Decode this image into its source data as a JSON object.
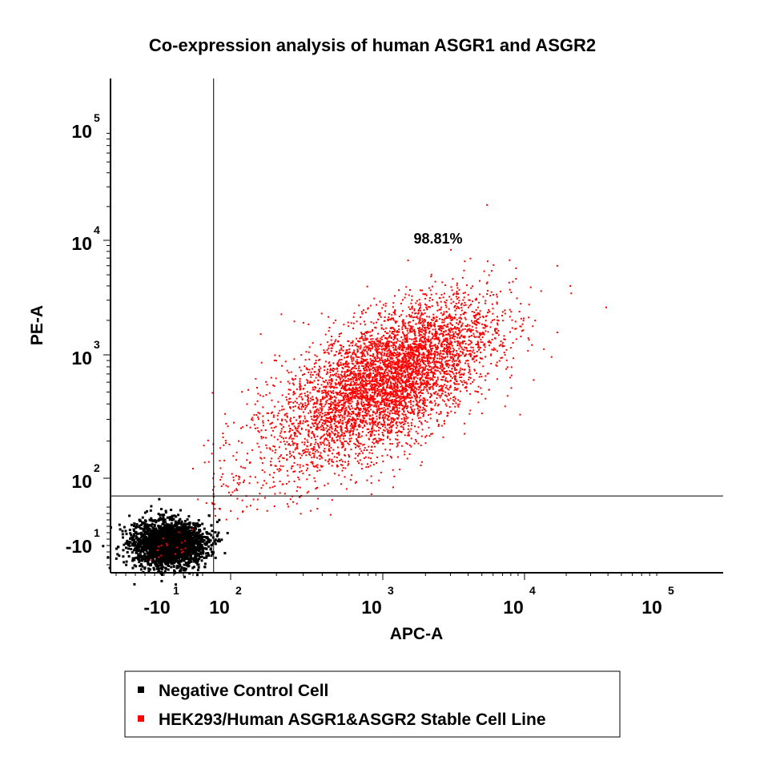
{
  "chart_data": {
    "type": "scatter",
    "title": "Co-expression analysis of human ASGR1 and ASGR2",
    "xlabel": "APC-A",
    "ylabel": "PE-A",
    "x_scale": "biexponential",
    "y_scale": "biexponential",
    "x_ticks": [
      {
        "base": "-10",
        "exp": "1",
        "value": -10
      },
      {
        "base": "10",
        "exp": "2",
        "value": 100
      },
      {
        "base": "10",
        "exp": "3",
        "value": 1000
      },
      {
        "base": "10",
        "exp": "4",
        "value": 10000
      },
      {
        "base": "10",
        "exp": "5",
        "value": 100000
      }
    ],
    "y_ticks": [
      {
        "base": "-10",
        "exp": "1",
        "value": -10
      },
      {
        "base": "10",
        "exp": "2",
        "value": 100
      },
      {
        "base": "10",
        "exp": "3",
        "value": 1000
      },
      {
        "base": "10",
        "exp": "4",
        "value": 10000
      },
      {
        "base": "10",
        "exp": "5",
        "value": 100000
      }
    ],
    "gate": {
      "x": 70,
      "y": 70
    },
    "annotations": [
      {
        "text": "98.81%",
        "quadrant": "upper-right"
      }
    ],
    "series": [
      {
        "name": "Negative Control Cell",
        "color": "#000000",
        "center": {
          "x": -10,
          "y": -10
        },
        "spread_decades": 0.3
      },
      {
        "name": "HEK293/Human ASGR1&ASGR2 Stable Cell Line",
        "color": "#ff0000",
        "center": {
          "x": 1100,
          "y": 650
        },
        "spread_decades": 0.45,
        "percent_upper_right": 98.81
      }
    ],
    "legend": "bottom-center",
    "grid": false
  }
}
